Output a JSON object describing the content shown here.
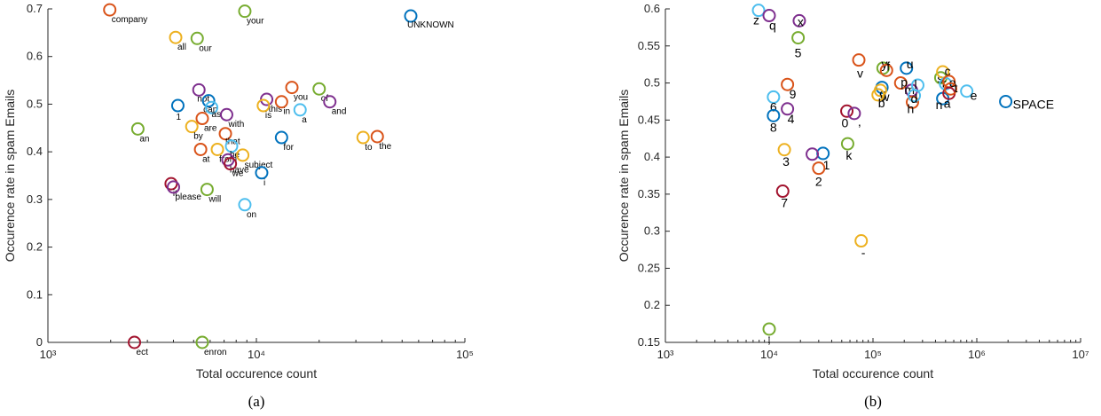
{
  "chart_data": [
    {
      "type": "scatter",
      "panel_label": "(a)",
      "xlabel": "Total occurence count",
      "ylabel": "Occurence rate in spam Emails",
      "xscale": "log",
      "xlim": [
        1000,
        100000
      ],
      "ylim": [
        0,
        0.7
      ],
      "xticks": [
        1000,
        10000,
        100000
      ],
      "yticks": [
        0,
        0.1,
        0.2,
        0.3,
        0.4,
        0.5,
        0.6,
        0.7
      ],
      "xtick_labels": [
        "10³",
        "10⁴",
        "10⁵"
      ],
      "ytick_labels": [
        "0",
        "0.1",
        "0.2",
        "0.3",
        "0.4",
        "0.5",
        "0.6",
        "0.7"
      ],
      "grid": false,
      "points": [
        {
          "label": "company",
          "x": 1980,
          "y": 0.698,
          "color": "#D95319"
        },
        {
          "label": "your",
          "x": 8800,
          "y": 0.695,
          "color": "#77AC30"
        },
        {
          "label": "UNKNOWN",
          "x": 55000,
          "y": 0.685,
          "color": "#0072BD"
        },
        {
          "label": "all",
          "x": 4100,
          "y": 0.64,
          "color": "#EDB120"
        },
        {
          "label": "our",
          "x": 5200,
          "y": 0.638,
          "color": "#77AC30"
        },
        {
          "label": "you",
          "x": 14800,
          "y": 0.535,
          "color": "#D95319"
        },
        {
          "label": "of",
          "x": 20000,
          "y": 0.532,
          "color": "#77AC30"
        },
        {
          "label": "not",
          "x": 5300,
          "y": 0.53,
          "color": "#7E2F8E"
        },
        {
          "label": "and",
          "x": 22500,
          "y": 0.505,
          "color": "#7E2F8E"
        },
        {
          "label": "this",
          "x": 11200,
          "y": 0.51,
          "color": "#7E2F8E"
        },
        {
          "label": "in",
          "x": 13200,
          "y": 0.505,
          "color": "#D95319"
        },
        {
          "label": "is",
          "x": 10800,
          "y": 0.497,
          "color": "#EDB120"
        },
        {
          "label": "a",
          "x": 16200,
          "y": 0.488,
          "color": "#4DBEEE"
        },
        {
          "label": "1",
          "x": 4200,
          "y": 0.497,
          "color": "#0072BD"
        },
        {
          "label": "can",
          "x": 5900,
          "y": 0.507,
          "color": "#0072BD"
        },
        {
          "label": "as",
          "x": 6100,
          "y": 0.493,
          "color": "#4DBEEE"
        },
        {
          "label": "with",
          "x": 7200,
          "y": 0.478,
          "color": "#7E2F8E"
        },
        {
          "label": "are",
          "x": 5500,
          "y": 0.47,
          "color": "#D95319"
        },
        {
          "label": "by",
          "x": 4900,
          "y": 0.453,
          "color": "#EDB120"
        },
        {
          "label": "an",
          "x": 2700,
          "y": 0.448,
          "color": "#77AC30"
        },
        {
          "label": "that",
          "x": 7100,
          "y": 0.438,
          "color": "#D95319"
        },
        {
          "label": "for",
          "x": 13200,
          "y": 0.43,
          "color": "#0072BD"
        },
        {
          "label": "to",
          "x": 32500,
          "y": 0.43,
          "color": "#EDB120"
        },
        {
          "label": "the",
          "x": 38000,
          "y": 0.432,
          "color": "#D95319"
        },
        {
          "label": "from",
          "x": 6500,
          "y": 0.405,
          "color": "#EDB120"
        },
        {
          "label": "at",
          "x": 5400,
          "y": 0.405,
          "color": "#D95319"
        },
        {
          "label": "be",
          "x": 7600,
          "y": 0.412,
          "color": "#4DBEEE"
        },
        {
          "label": "have",
          "x": 7300,
          "y": 0.383,
          "color": "#7E2F8E"
        },
        {
          "label": "subject",
          "x": 8600,
          "y": 0.393,
          "color": "#EDB120"
        },
        {
          "label": "we",
          "x": 7500,
          "y": 0.375,
          "color": "#A2142F"
        },
        {
          "label": "i",
          "x": 10600,
          "y": 0.356,
          "color": "#0072BD"
        },
        {
          "label": "it",
          "x": 3900,
          "y": 0.333,
          "color": "#A2142F"
        },
        {
          "label": "please",
          "x": 4000,
          "y": 0.326,
          "color": "#7E2F8E"
        },
        {
          "label": "will",
          "x": 5800,
          "y": 0.321,
          "color": "#77AC30"
        },
        {
          "label": "on",
          "x": 8800,
          "y": 0.289,
          "color": "#4DBEEE"
        },
        {
          "label": "ect",
          "x": 2600,
          "y": 0.0,
          "color": "#A2142F"
        },
        {
          "label": "enron",
          "x": 5500,
          "y": 0.0,
          "color": "#77AC30"
        }
      ]
    },
    {
      "type": "scatter",
      "panel_label": "(b)",
      "xlabel": "Total occurence count",
      "ylabel": "Occurence rate in spam Emails",
      "xscale": "log",
      "xlim": [
        1000,
        10000000
      ],
      "ylim": [
        0.15,
        0.6
      ],
      "xticks": [
        1000,
        10000,
        100000,
        1000000,
        10000000
      ],
      "yticks": [
        0.15,
        0.2,
        0.25,
        0.3,
        0.35,
        0.4,
        0.45,
        0.5,
        0.55,
        0.6
      ],
      "xtick_labels": [
        "10³",
        "10⁴",
        "10⁵",
        "10⁶",
        "10⁷"
      ],
      "ytick_labels": [
        "0.15",
        "0.2",
        "0.25",
        "0.3",
        "0.35",
        "0.4",
        "0.45",
        "0.5",
        "0.55",
        "0.6"
      ],
      "grid": false,
      "points": [
        {
          "label": "z",
          "x": 7900,
          "y": 0.598,
          "color": "#4DBEEE"
        },
        {
          "label": "q",
          "x": 10000,
          "y": 0.591,
          "color": "#7E2F8E"
        },
        {
          "label": "x",
          "x": 19500,
          "y": 0.584,
          "color": "#7E2F8E"
        },
        {
          "label": "5",
          "x": 19000,
          "y": 0.561,
          "color": "#77AC30"
        },
        {
          "label": "v",
          "x": 73000,
          "y": 0.531,
          "color": "#D95319"
        },
        {
          "label": "y",
          "x": 125000,
          "y": 0.52,
          "color": "#77AC30"
        },
        {
          "label": "f",
          "x": 135000,
          "y": 0.517,
          "color": "#D95319"
        },
        {
          "label": "u",
          "x": 210000,
          "y": 0.52,
          "color": "#0072BD"
        },
        {
          "label": "9",
          "x": 15000,
          "y": 0.498,
          "color": "#D95319"
        },
        {
          "label": "6",
          "x": 11000,
          "y": 0.481,
          "color": "#4DBEEE"
        },
        {
          "label": "4",
          "x": 15000,
          "y": 0.465,
          "color": "#7E2F8E"
        },
        {
          "label": "8",
          "x": 11000,
          "y": 0.456,
          "color": "#0072BD"
        },
        {
          "label": "0",
          "x": 56000,
          "y": 0.462,
          "color": "#A2142F"
        },
        {
          "label": ",",
          "x": 66000,
          "y": 0.459,
          "color": "#7E2F8E"
        },
        {
          "label": "g",
          "x": 122000,
          "y": 0.494,
          "color": "#0072BD"
        },
        {
          "label": "w",
          "x": 118000,
          "y": 0.49,
          "color": "#EDB120"
        },
        {
          "label": "b",
          "x": 112000,
          "y": 0.484,
          "color": "#EDB120"
        },
        {
          "label": "p",
          "x": 185000,
          "y": 0.5,
          "color": "#D95319"
        },
        {
          "label": "m",
          "x": 235000,
          "y": 0.49,
          "color": "#7E2F8E"
        },
        {
          "label": "l",
          "x": 270000,
          "y": 0.497,
          "color": "#4DBEEE"
        },
        {
          "label": "h",
          "x": 240000,
          "y": 0.474,
          "color": "#D95319"
        },
        {
          "label": "d",
          "x": 250000,
          "y": 0.483,
          "color": "#4DBEEE"
        },
        {
          "label": "s",
          "x": 450000,
          "y": 0.507,
          "color": "#77AC30"
        },
        {
          "label": "c",
          "x": 470000,
          "y": 0.515,
          "color": "#EDB120"
        },
        {
          "label": "r",
          "x": 500000,
          "y": 0.499,
          "color": "#4DBEEE"
        },
        {
          "label": "o",
          "x": 540000,
          "y": 0.502,
          "color": "#D95319"
        },
        {
          "label": "n",
          "x": 470000,
          "y": 0.479,
          "color": "#0072BD"
        },
        {
          "label": "a",
          "x": 540000,
          "y": 0.486,
          "color": "#A2142F"
        },
        {
          "label": "t",
          "x": 560000,
          "y": 0.492,
          "color": "#D95319"
        },
        {
          "label": "e",
          "x": 800000,
          "y": 0.489,
          "color": "#4DBEEE"
        },
        {
          "label": "SPACE",
          "x": 1900000,
          "y": 0.475,
          "color": "#0072BD"
        },
        {
          "label": "3",
          "x": 14000,
          "y": 0.41,
          "color": "#EDB120"
        },
        {
          "label": "1",
          "x": 33000,
          "y": 0.405,
          "color": "#0072BD"
        },
        {
          "label": ".",
          "x": 26000,
          "y": 0.404,
          "color": "#7E2F8E"
        },
        {
          "label": "2",
          "x": 30000,
          "y": 0.385,
          "color": "#D95319"
        },
        {
          "label": "k",
          "x": 57000,
          "y": 0.418,
          "color": "#77AC30"
        },
        {
          "label": "7",
          "x": 13500,
          "y": 0.354,
          "color": "#A2142F"
        },
        {
          "label": "-",
          "x": 77000,
          "y": 0.287,
          "color": "#EDB120"
        },
        {
          "label": ";",
          "x": 10000,
          "y": 0.168,
          "color": "#77AC30"
        }
      ]
    }
  ]
}
